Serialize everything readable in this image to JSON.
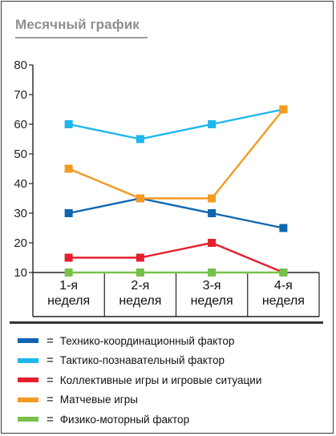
{
  "chart_data": {
    "type": "line",
    "title": "Месячный график",
    "categories": [
      [
        "1-я",
        "неделя"
      ],
      [
        "2-я",
        "неделя"
      ],
      [
        "3-я",
        "неделя"
      ],
      [
        "4-я",
        "неделя"
      ]
    ],
    "ylim": [
      10,
      80
    ],
    "yticks": [
      10,
      20,
      30,
      40,
      50,
      60,
      70,
      80
    ],
    "grid": false,
    "legend_position": "bottom",
    "legend_separator": "=",
    "series": [
      {
        "name": "Технико-координационный фактор",
        "color": "#0f66b0",
        "values": [
          30,
          35,
          30,
          25
        ]
      },
      {
        "name": "Тактико-познавательный фактор",
        "color": "#1db7ec",
        "values": [
          60,
          55,
          60,
          65
        ]
      },
      {
        "name": "Коллективные игры и игровые ситуации",
        "color": "#e3202c",
        "values": [
          15,
          15,
          20,
          10
        ]
      },
      {
        "name": "Матчевые игры",
        "color": "#f39a22",
        "values": [
          45,
          35,
          35,
          65
        ]
      },
      {
        "name": "Физико-моторный фактор",
        "color": "#77c14a",
        "values": [
          10,
          10,
          10,
          10
        ]
      }
    ]
  }
}
